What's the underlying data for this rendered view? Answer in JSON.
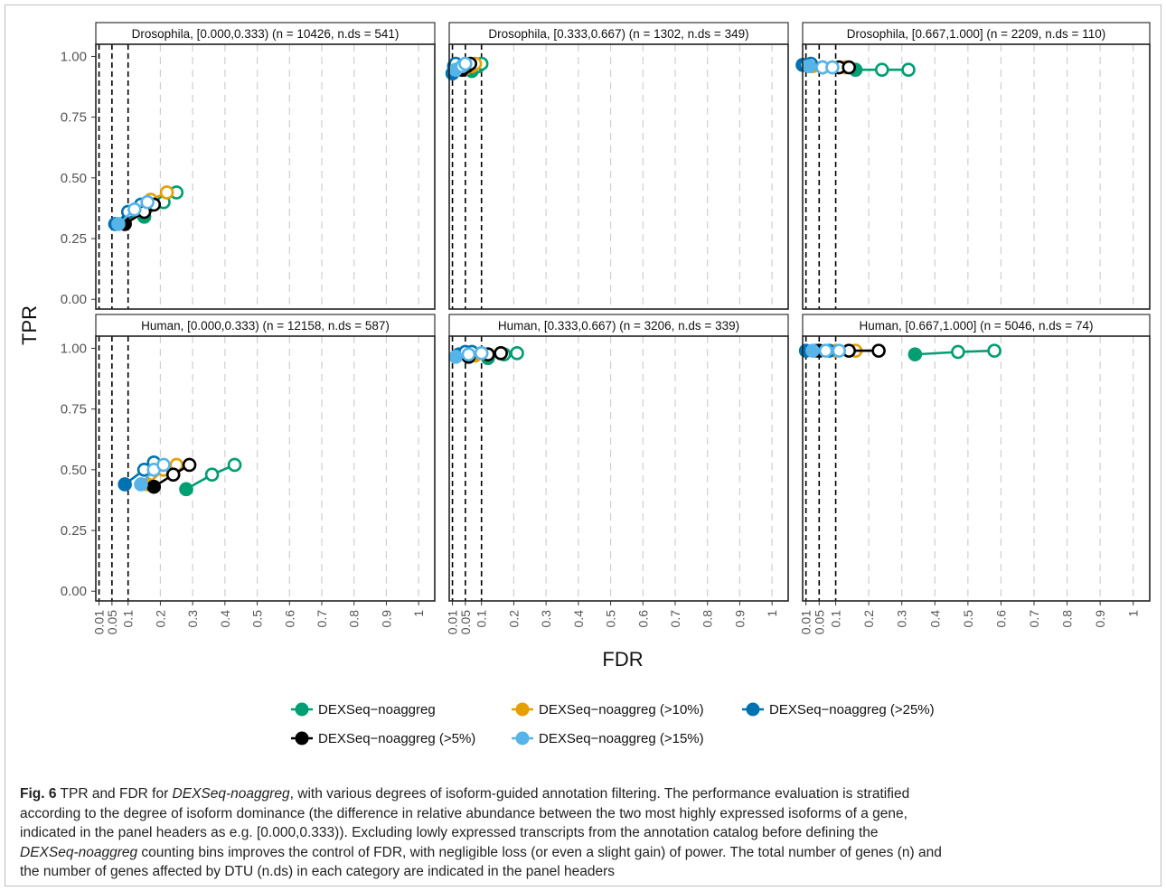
{
  "chart_data": {
    "type": "scatter",
    "xlabel": "FDR",
    "ylabel": "TPR",
    "xlim": [
      0,
      1.05
    ],
    "ylim": [
      -0.04,
      1.05
    ],
    "x_ticks": [
      "0.01",
      "0.05",
      "0.1",
      "0.2",
      "0.3",
      "0.4",
      "0.5",
      "0.6",
      "0.7",
      "0.8",
      "0.9",
      "1"
    ],
    "x_tick_values": [
      0.01,
      0.05,
      0.1,
      0.2,
      0.3,
      0.4,
      0.5,
      0.6,
      0.7,
      0.8,
      0.9,
      1
    ],
    "y_ticks": [
      "0.00",
      "0.25",
      "0.50",
      "0.75",
      "1.00"
    ],
    "y_tick_values": [
      0,
      0.25,
      0.5,
      0.75,
      1
    ],
    "threshold_lines": [
      0.01,
      0.05,
      0.1
    ],
    "grid": "vertical dashed",
    "legend_position": "bottom",
    "series": [
      {
        "name": "DEXSeq−noaggreg",
        "color": "#009E73"
      },
      {
        "name": "DEXSeq−noaggreg (>10%)",
        "color": "#E69F00"
      },
      {
        "name": "DEXSeq−noaggreg (>25%)",
        "color": "#0072B2"
      },
      {
        "name": "DEXSeq−noaggreg (>5%)",
        "color": "#000000"
      },
      {
        "name": "DEXSeq−noaggreg (>15%)",
        "color": "#56B4E9"
      }
    ],
    "panels": [
      {
        "title": "Drosophila, [0.000,0.333) (n = 10426, n.ds = 541)",
        "data": [
          [
            [
              0.15,
              0.34
            ],
            [
              0.21,
              0.4
            ],
            [
              0.25,
              0.44
            ]
          ],
          [
            [
              0.11,
              0.36
            ],
            [
              0.17,
              0.41
            ],
            [
              0.22,
              0.44
            ]
          ],
          [
            [
              0.06,
              0.31
            ],
            [
              0.1,
              0.36
            ],
            [
              0.14,
              0.39
            ]
          ],
          [
            [
              0.09,
              0.31
            ],
            [
              0.15,
              0.36
            ],
            [
              0.18,
              0.39
            ]
          ],
          [
            [
              0.07,
              0.31
            ],
            [
              0.12,
              0.37
            ],
            [
              0.16,
              0.4
            ]
          ]
        ]
      },
      {
        "title": "Drosophila, [0.333,0.667) (n = 1302, n.ds = 349)",
        "data": [
          [
            [
              0.07,
              0.94
            ],
            [
              0.09,
              0.96
            ],
            [
              0.1,
              0.97
            ]
          ],
          [
            [
              0.05,
              0.95
            ],
            [
              0.07,
              0.96
            ],
            [
              0.08,
              0.97
            ]
          ],
          [
            [
              0.01,
              0.93
            ],
            [
              0.015,
              0.96
            ],
            [
              0.02,
              0.97
            ]
          ],
          [
            [
              0.04,
              0.945
            ],
            [
              0.055,
              0.96
            ],
            [
              0.065,
              0.97
            ]
          ],
          [
            [
              0.02,
              0.945
            ],
            [
              0.04,
              0.96
            ],
            [
              0.05,
              0.97
            ]
          ]
        ]
      },
      {
        "title": "Drosophila, [0.667,1.000] (n = 2209, n.ds = 110)",
        "data": [
          [
            [
              0.16,
              0.945
            ],
            [
              0.24,
              0.945
            ],
            [
              0.32,
              0.945
            ]
          ],
          [
            [
              0.03,
              0.96
            ],
            [
              0.09,
              0.955
            ],
            [
              0.13,
              0.955
            ]
          ],
          [
            [
              0.0,
              0.965
            ],
            [
              0.01,
              0.965
            ],
            [
              0.025,
              0.97
            ]
          ],
          [
            [
              0.06,
              0.955
            ],
            [
              0.11,
              0.955
            ],
            [
              0.14,
              0.955
            ]
          ],
          [
            [
              0.02,
              0.96
            ],
            [
              0.06,
              0.955
            ],
            [
              0.09,
              0.955
            ]
          ]
        ]
      },
      {
        "title": "Human, [0.000,0.333) (n = 12158, n.ds = 587)",
        "data": [
          [
            [
              0.28,
              0.42
            ],
            [
              0.36,
              0.48
            ],
            [
              0.43,
              0.52
            ]
          ],
          [
            [
              0.16,
              0.44
            ],
            [
              0.21,
              0.5
            ],
            [
              0.25,
              0.52
            ]
          ],
          [
            [
              0.09,
              0.44
            ],
            [
              0.15,
              0.5
            ],
            [
              0.18,
              0.53
            ]
          ],
          [
            [
              0.18,
              0.43
            ],
            [
              0.24,
              0.48
            ],
            [
              0.29,
              0.52
            ]
          ],
          [
            [
              0.14,
              0.44
            ],
            [
              0.18,
              0.5
            ],
            [
              0.21,
              0.52
            ]
          ]
        ]
      },
      {
        "title": "Human, [0.333,0.667) (n = 3206, n.ds = 339)",
        "data": [
          [
            [
              0.12,
              0.96
            ],
            [
              0.17,
              0.975
            ],
            [
              0.21,
              0.98
            ]
          ],
          [
            [
              0.08,
              0.97
            ],
            [
              0.12,
              0.975
            ],
            [
              0.16,
              0.98
            ]
          ],
          [
            [
              0.03,
              0.975
            ],
            [
              0.05,
              0.985
            ],
            [
              0.07,
              0.985
            ]
          ],
          [
            [
              0.06,
              0.965
            ],
            [
              0.12,
              0.975
            ],
            [
              0.16,
              0.98
            ]
          ],
          [
            [
              0.02,
              0.965
            ],
            [
              0.06,
              0.975
            ],
            [
              0.1,
              0.98
            ]
          ]
        ]
      },
      {
        "title": "Human, [0.667,1.000] (n = 5046, n.ds = 74)",
        "data": [
          [
            [
              0.34,
              0.975
            ],
            [
              0.47,
              0.985
            ],
            [
              0.58,
              0.99
            ]
          ],
          [
            [
              0.05,
              0.99
            ],
            [
              0.1,
              0.99
            ],
            [
              0.16,
              0.99
            ]
          ],
          [
            [
              0.01,
              0.99
            ],
            [
              0.04,
              0.99
            ],
            [
              0.08,
              0.99
            ]
          ],
          [
            [
              0.05,
              0.99
            ],
            [
              0.14,
              0.99
            ],
            [
              0.23,
              0.99
            ]
          ],
          [
            [
              0.03,
              0.99
            ],
            [
              0.07,
              0.99
            ],
            [
              0.11,
              0.99
            ]
          ]
        ]
      }
    ]
  },
  "caption": {
    "fig_label": "Fig. 6",
    "line1_a": " TPR and FDR for ",
    "line1_em": "DEXSeq-noaggreg",
    "line1_b": ", with various degrees of isoform-guided annotation filtering. The performance evaluation is stratified",
    "line2": "according to the degree of isoform dominance (the difference in relative abundance between the two most highly expressed isoforms of a gene,",
    "line3": "indicated in the panel headers as e.g. [0.000,0.333)). Excluding lowly expressed transcripts from the annotation catalog before defining the",
    "line4_em": "DEXSeq-noaggreg",
    "line4_b": " counting bins improves the control of FDR, with negligible loss (or even a slight gain) of power. The total number of genes (n) and",
    "line5": "the number of genes affected by DTU (n.ds) in each category are indicated in the panel headers"
  }
}
